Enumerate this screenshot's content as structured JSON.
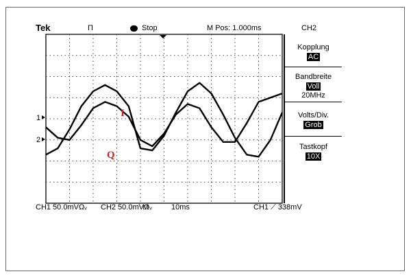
{
  "header": {
    "brand": "Tek",
    "trigger_mode": "Π",
    "status": "Stop",
    "position": "M Pos: 1.000ms",
    "channel": "CH2"
  },
  "markers": {
    "ch1": "1",
    "ch2": "2"
  },
  "side_menu": {
    "items": [
      {
        "label": "Kopplung",
        "value": "AC"
      },
      {
        "label": "Bandbreite",
        "value": "Voll",
        "note": "20MHz"
      },
      {
        "label": "Volts/Div.",
        "value": "Grob"
      },
      {
        "label": "Tastkopf",
        "value": "10X"
      }
    ]
  },
  "footer": {
    "ch1": "CH1  50.0mVΩᵥ",
    "ch2": "CH2  50.0mVΩᵥ",
    "timebase_prefix": "M",
    "timebase": "10ms",
    "trigger": "CH1  ⟋  338mV"
  },
  "annotations": {
    "i_label": "I",
    "q_label": "Q",
    "color": "#d62020"
  },
  "chart_data": {
    "type": "line",
    "title": "",
    "xlabel": "",
    "ylabel": "",
    "grid": true,
    "x_divisions": 10,
    "y_divisions": 8,
    "series": [
      {
        "name": "I",
        "trace": "ch1",
        "x": [
          0,
          0.5,
          1,
          1.5,
          2,
          2.5,
          3,
          3.5,
          4,
          4.5,
          5,
          5.5,
          6,
          6.5,
          7,
          7.5,
          8,
          8.5,
          9,
          9.5,
          10
        ],
        "y": [
          -0.4,
          -0.9,
          -1.0,
          -0.3,
          0.5,
          0.8,
          0.6,
          0.1,
          -1.0,
          -1.3,
          -0.7,
          0.2,
          0.7,
          0.5,
          -0.4,
          -1.1,
          -1.1,
          -0.2,
          0.8,
          1.0,
          1.2
        ]
      },
      {
        "name": "Q",
        "trace": "ch2",
        "x": [
          0,
          0.5,
          1,
          1.5,
          2,
          2.5,
          3,
          3.5,
          4,
          4.5,
          5,
          5.5,
          6,
          6.5,
          7,
          7.5,
          8,
          8.5,
          9,
          9.5,
          10
        ],
        "y": [
          -1.7,
          -1.4,
          -0.5,
          0.6,
          1.3,
          1.6,
          1.3,
          0.6,
          -1.4,
          -1.5,
          -0.8,
          0.3,
          1.3,
          1.7,
          1.2,
          0.2,
          -0.9,
          -1.7,
          -1.8,
          -1.0,
          0.3
        ]
      }
    ]
  }
}
